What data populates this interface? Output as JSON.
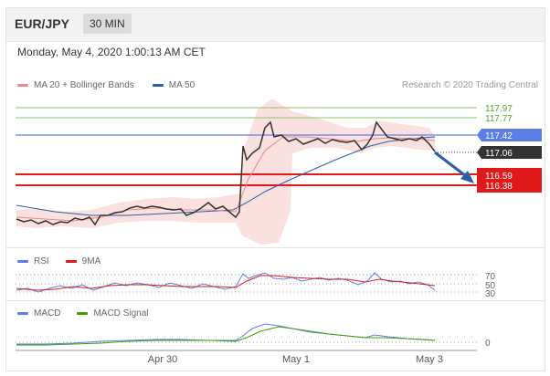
{
  "header": {
    "pair": "EUR/JPY",
    "timeframe": "30 MIN"
  },
  "datetime": "Monday, May 4, 2020 1:00:13 AM CET",
  "legend": {
    "bollinger": "MA 20 + Bollinger Bands",
    "ma50": "MA 50",
    "copyright": "Research © 2020 Trading Central",
    "rsi": "RSI",
    "nine_ma": "9MA",
    "macd": "MACD",
    "macd_signal": "MACD Signal"
  },
  "colors": {
    "bollinger": "#f08a8a",
    "ma50": "#2a5fa8",
    "rsi": "#5b7fe6",
    "nine_ma": "#e01a1a",
    "macd": "#5b7fe6",
    "macd_signal": "#40a000",
    "resistance": "#8cc46a",
    "support": "#e01a1a",
    "current_price": "#333333",
    "ma50_level": "#5b7fe6"
  },
  "price_levels": [
    {
      "label": "117.97",
      "type": "resistance"
    },
    {
      "label": "117.77",
      "type": "resistance"
    },
    {
      "label": "117.42",
      "type": "ma50-level"
    },
    {
      "label": "117.06",
      "type": "current"
    },
    {
      "label": "116.59",
      "type": "support"
    },
    {
      "label": "116.38",
      "type": "support"
    }
  ],
  "rsi_levels": [
    "70",
    "50",
    "30"
  ],
  "macd_levels": [
    "0"
  ],
  "x_axis": [
    "Apr 30",
    "May 1",
    "May 3"
  ]
}
